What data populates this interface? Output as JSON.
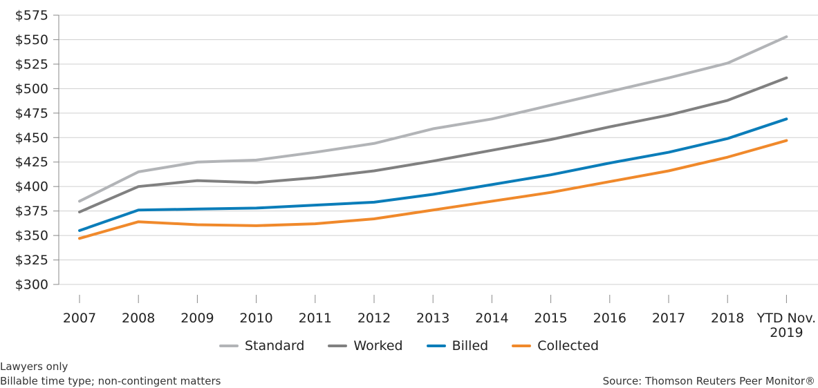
{
  "chart_data": {
    "type": "line",
    "categories": [
      "2007",
      "2008",
      "2009",
      "2010",
      "2011",
      "2012",
      "2013",
      "2014",
      "2015",
      "2016",
      "2017",
      "2018",
      "YTD Nov. 2019"
    ],
    "series": [
      {
        "name": "Standard",
        "color": "#b2b4b7",
        "values": [
          385,
          415,
          425,
          427,
          435,
          444,
          459,
          469,
          483,
          497,
          511,
          526,
          553
        ]
      },
      {
        "name": "Worked",
        "color": "#808080",
        "values": [
          374,
          400,
          406,
          404,
          409,
          416,
          426,
          437,
          448,
          461,
          473,
          488,
          511
        ]
      },
      {
        "name": "Billed",
        "color": "#0b7db9",
        "values": [
          355,
          376,
          377,
          378,
          381,
          384,
          392,
          402,
          412,
          424,
          435,
          449,
          469
        ]
      },
      {
        "name": "Collected",
        "color": "#f0892b",
        "values": [
          347,
          364,
          361,
          360,
          362,
          367,
          376,
          385,
          394,
          405,
          416,
          430,
          447
        ]
      }
    ],
    "ylim": [
      300,
      575
    ],
    "yticks": [
      {
        "value": 300,
        "label": "$300"
      },
      {
        "value": 325,
        "label": "$325"
      },
      {
        "value": 350,
        "label": "$350"
      },
      {
        "value": 375,
        "label": "$375"
      },
      {
        "value": 400,
        "label": "$400"
      },
      {
        "value": 425,
        "label": "$425"
      },
      {
        "value": 450,
        "label": "$450"
      },
      {
        "value": 475,
        "label": "$475"
      },
      {
        "value": 500,
        "label": "$500"
      },
      {
        "value": 525,
        "label": "$525"
      },
      {
        "value": 550,
        "label": "$550"
      },
      {
        "value": 575,
        "label": "$575"
      }
    ],
    "grid": true,
    "notes": [
      "Lawyers only",
      "Billable time type; non-contingent matters"
    ],
    "source": "Source: Thomson Reuters Peer Monitor®"
  }
}
